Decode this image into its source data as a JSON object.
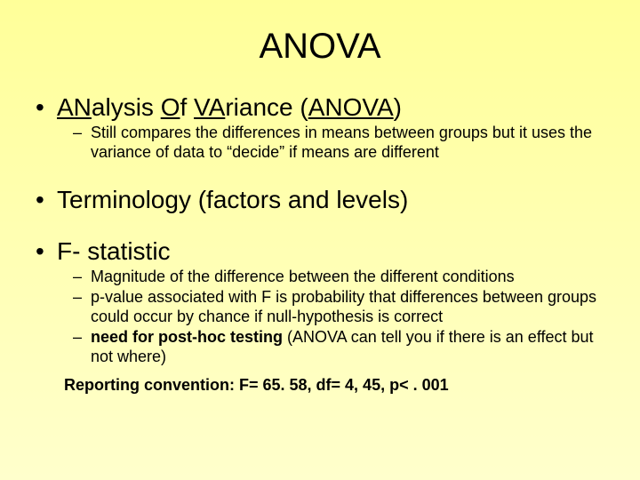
{
  "title": "ANOVA",
  "bullet1": {
    "pre1": "AN",
    "mid1": "alysis ",
    "pre2": "O",
    "mid2": "f ",
    "pre3": "VA",
    "mid3": "riance (",
    "acr": "ANOVA",
    "post": ")"
  },
  "sub1": "Still compares the differences in means between groups but it uses the variance of data to “decide” if means are different",
  "bullet2": "Terminology (factors and levels)",
  "bullet3": "F- statistic",
  "sub3a": "Magnitude of the difference between the different conditions",
  "sub3b": "p-value associated with F is probability that differences between groups could occur by chance if null-hypothesis is correct",
  "sub3c_bold": "need for post-hoc testing ",
  "sub3c_rest": "(ANOVA can tell you if there is an effect but not where)",
  "reporting": "Reporting convention: F= 65. 58, df= 4, 45, p< . 001",
  "colors": {
    "bg_top": "#ffff99",
    "bg_bottom": "#ffffcc",
    "text": "#000000"
  },
  "typography": {
    "title_fontsize": 40,
    "l1_fontsize": 28,
    "l2_fontsize": 18,
    "reporting_fontsize": 18
  }
}
